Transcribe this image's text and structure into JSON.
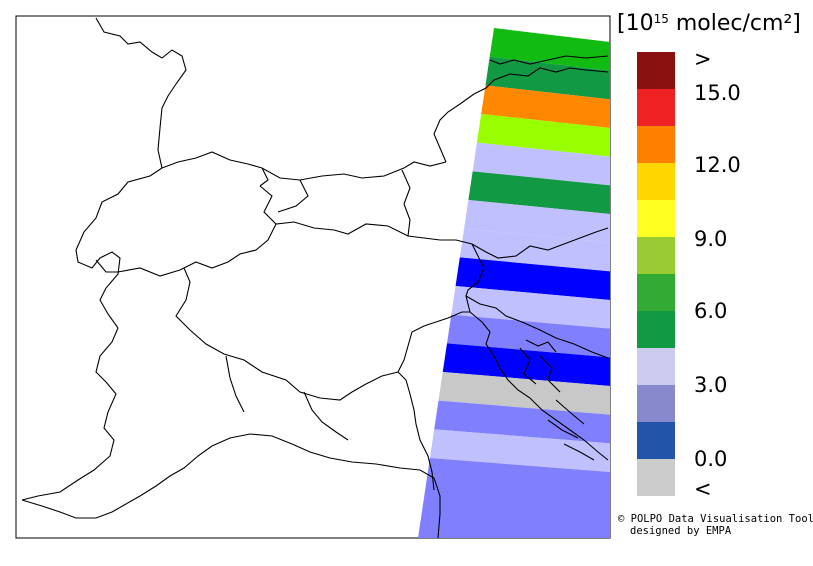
{
  "legend": {
    "units": {
      "open_bracket": "[",
      "base": "10",
      "exponent": "15",
      "rest": " molec/cm²",
      "close_bracket": "]"
    },
    "labels": [
      ">",
      "15.0",
      "12.0",
      "9.0",
      "6.0",
      "3.0",
      "0.0",
      "<"
    ],
    "swatches": [
      "#8B1111",
      "#EE2222",
      "#FF7F00",
      "#FFD700",
      "#FFFF22",
      "#99CC33",
      "#33AA33",
      "#119944",
      "#CCCCEE",
      "#8888CC",
      "#2255AA",
      "#CCCCCC"
    ]
  },
  "credit": {
    "line1": "© POLPO Data Visualisation Tool",
    "line2": "designed by EMPA"
  },
  "swath": {
    "rows": [
      {
        "color": "#11BB11"
      },
      {
        "color": "#119944"
      },
      {
        "color": "#FF8800"
      },
      {
        "color": "#99FF00"
      },
      {
        "color": "#C0C0FF"
      },
      {
        "color": "#119944"
      },
      {
        "color": "#C0C0FF"
      },
      {
        "color": "#C0C0FF"
      },
      {
        "color": "#0000FF"
      },
      {
        "color": "#C0C0FF"
      },
      {
        "color": "#8080FF"
      },
      {
        "color": "#0000FF"
      },
      {
        "color": "#C8C8C8"
      },
      {
        "color": "#8080FF"
      },
      {
        "color": "#C0C0FF"
      },
      {
        "color": "#8080FF"
      }
    ]
  }
}
